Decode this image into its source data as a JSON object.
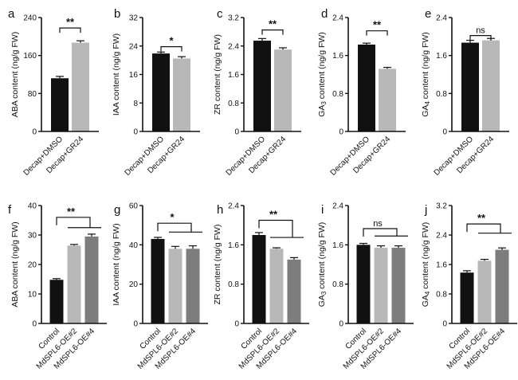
{
  "colors": {
    "black": "#111111",
    "light_gray": "#b8b8b8",
    "mid_gray": "#7d7d7d"
  },
  "chart_data": [
    {
      "letter": "a",
      "type": "bar",
      "ylabel": "ABA content (ng/g FW)",
      "yticks": [
        0,
        80,
        160,
        240
      ],
      "ylim": [
        0,
        240
      ],
      "categories": [
        "Decap+DMSO",
        "Decap+GR24"
      ],
      "values": [
        112,
        187
      ],
      "errors": [
        4,
        4
      ],
      "colors": [
        "black",
        "light_gray"
      ],
      "sig": [
        {
          "type": "bracket",
          "label": "**",
          "from": 0,
          "to": 1,
          "level": 218
        }
      ]
    },
    {
      "letter": "b",
      "type": "bar",
      "ylabel": "IAA content (ng/g FW)",
      "yticks": [
        0,
        8,
        16,
        24,
        32
      ],
      "ylim": [
        0,
        32
      ],
      "categories": [
        "Decap+DMSO",
        "Decap+GR24"
      ],
      "values": [
        21.9,
        20.5
      ],
      "errors": [
        0.4,
        0.5
      ],
      "colors": [
        "black",
        "light_gray"
      ],
      "sig": [
        {
          "type": "bracket",
          "label": "*",
          "from": 0,
          "to": 1,
          "level": 23.8
        }
      ]
    },
    {
      "letter": "c",
      "type": "bar",
      "ylabel": "ZR content (ng/g FW)",
      "yticks": [
        0,
        0.8,
        1.6,
        2.4,
        3.2
      ],
      "ylim": [
        0,
        3.2
      ],
      "categories": [
        "Decap+DMSO",
        "Decap+GR24"
      ],
      "values": [
        2.55,
        2.3
      ],
      "errors": [
        0.06,
        0.05
      ],
      "colors": [
        "black",
        "light_gray"
      ],
      "sig": [
        {
          "type": "bracket",
          "label": "**",
          "from": 0,
          "to": 1,
          "level": 2.85
        }
      ]
    },
    {
      "letter": "d",
      "type": "bar",
      "ylabel": "GA3 content (ng/g FW)",
      "yticks": [
        0,
        0.8,
        1.6,
        2.4
      ],
      "ylim": [
        0,
        2.4
      ],
      "categories": [
        "Decap+DMSO",
        "Decap+GR24"
      ],
      "values": [
        1.83,
        1.32
      ],
      "errors": [
        0.03,
        0.03
      ],
      "colors": [
        "black",
        "light_gray"
      ],
      "sig": [
        {
          "type": "bracket",
          "label": "**",
          "from": 0,
          "to": 1,
          "level": 2.12
        }
      ]
    },
    {
      "letter": "e",
      "type": "bar",
      "ylabel": "GA4 content (ng/g FW)",
      "yticks": [
        0,
        0.8,
        1.6,
        2.4
      ],
      "ylim": [
        0,
        2.4
      ],
      "categories": [
        "Decap+DMSO",
        "Decap+GR24"
      ],
      "values": [
        1.87,
        1.92
      ],
      "errors": [
        0.05,
        0.04
      ],
      "colors": [
        "black",
        "light_gray"
      ],
      "sig": [
        {
          "type": "bracket",
          "label": "ns",
          "from": 0,
          "to": 1,
          "level": 2.02
        }
      ]
    },
    {
      "letter": "f",
      "type": "bar",
      "ylabel": "ABA content (ng/g FW)",
      "yticks": [
        0,
        10,
        20,
        30,
        40
      ],
      "ylim": [
        0,
        40
      ],
      "categories": [
        "Control",
        "MdSPL6-OE#2",
        "MdSPL6-OE#4"
      ],
      "values": [
        14.8,
        26.4,
        29.5
      ],
      "errors": [
        0.4,
        0.4,
        0.8
      ],
      "colors": [
        "black",
        "light_gray",
        "mid_gray"
      ],
      "sig": [
        {
          "type": "group",
          "label": "**",
          "from": 0,
          "to": 2,
          "level": 36,
          "sub": 32.5
        }
      ]
    },
    {
      "letter": "g",
      "type": "bar",
      "ylabel": "IAA content (ng/g FW)",
      "yticks": [
        0,
        20,
        40,
        60
      ],
      "ylim": [
        0,
        60
      ],
      "categories": [
        "Control",
        "MdSPL6-OE#2",
        "MdSPL6-OE#4"
      ],
      "values": [
        43,
        38,
        38
      ],
      "errors": [
        0.8,
        1.2,
        1.5
      ],
      "colors": [
        "black",
        "light_gray",
        "mid_gray"
      ],
      "sig": [
        {
          "type": "group",
          "label": "*",
          "from": 0,
          "to": 2,
          "level": 51,
          "sub": 46.5
        }
      ]
    },
    {
      "letter": "h",
      "type": "bar",
      "ylabel": "ZR content (ng/g FW)",
      "yticks": [
        0,
        0.8,
        1.6,
        2.4
      ],
      "ylim": [
        0,
        2.4
      ],
      "categories": [
        "Control",
        "MdSPL6-OE#2",
        "MdSPL6-OE#4"
      ],
      "values": [
        1.8,
        1.52,
        1.3
      ],
      "errors": [
        0.05,
        0.02,
        0.04
      ],
      "colors": [
        "black",
        "light_gray",
        "mid_gray"
      ],
      "sig": [
        {
          "type": "group",
          "label": "**",
          "from": 0,
          "to": 2,
          "level": 2.1,
          "sub": 1.75
        }
      ]
    },
    {
      "letter": "i",
      "type": "bar",
      "ylabel": "GA3 content (ng/g FW)",
      "yticks": [
        0,
        0.8,
        1.6,
        2.4
      ],
      "ylim": [
        0,
        2.4
      ],
      "categories": [
        "Control",
        "MdSPL6-OE#2",
        "MdSPL6-OE#4"
      ],
      "values": [
        1.6,
        1.54,
        1.54
      ],
      "errors": [
        0.03,
        0.04,
        0.04
      ],
      "colors": [
        "black",
        "light_gray",
        "mid_gray"
      ],
      "sig": [
        {
          "type": "group",
          "label": "ns",
          "from": 0,
          "to": 2,
          "level": 1.93,
          "sub": 1.78
        }
      ]
    },
    {
      "letter": "j",
      "type": "bar",
      "ylabel": "GA4 content (ng/g FW)",
      "yticks": [
        0,
        0.8,
        1.6,
        2.4,
        3.2
      ],
      "ylim": [
        0,
        3.2
      ],
      "categories": [
        "Control",
        "MdSPL6-OE#2",
        "MdSPL6-OE#4"
      ],
      "values": [
        1.38,
        1.7,
        2.0
      ],
      "errors": [
        0.05,
        0.04,
        0.05
      ],
      "colors": [
        "black",
        "light_gray",
        "mid_gray"
      ],
      "sig": [
        {
          "type": "group",
          "label": "**",
          "from": 0,
          "to": 2,
          "level": 2.7,
          "sub": 2.45
        }
      ]
    }
  ]
}
